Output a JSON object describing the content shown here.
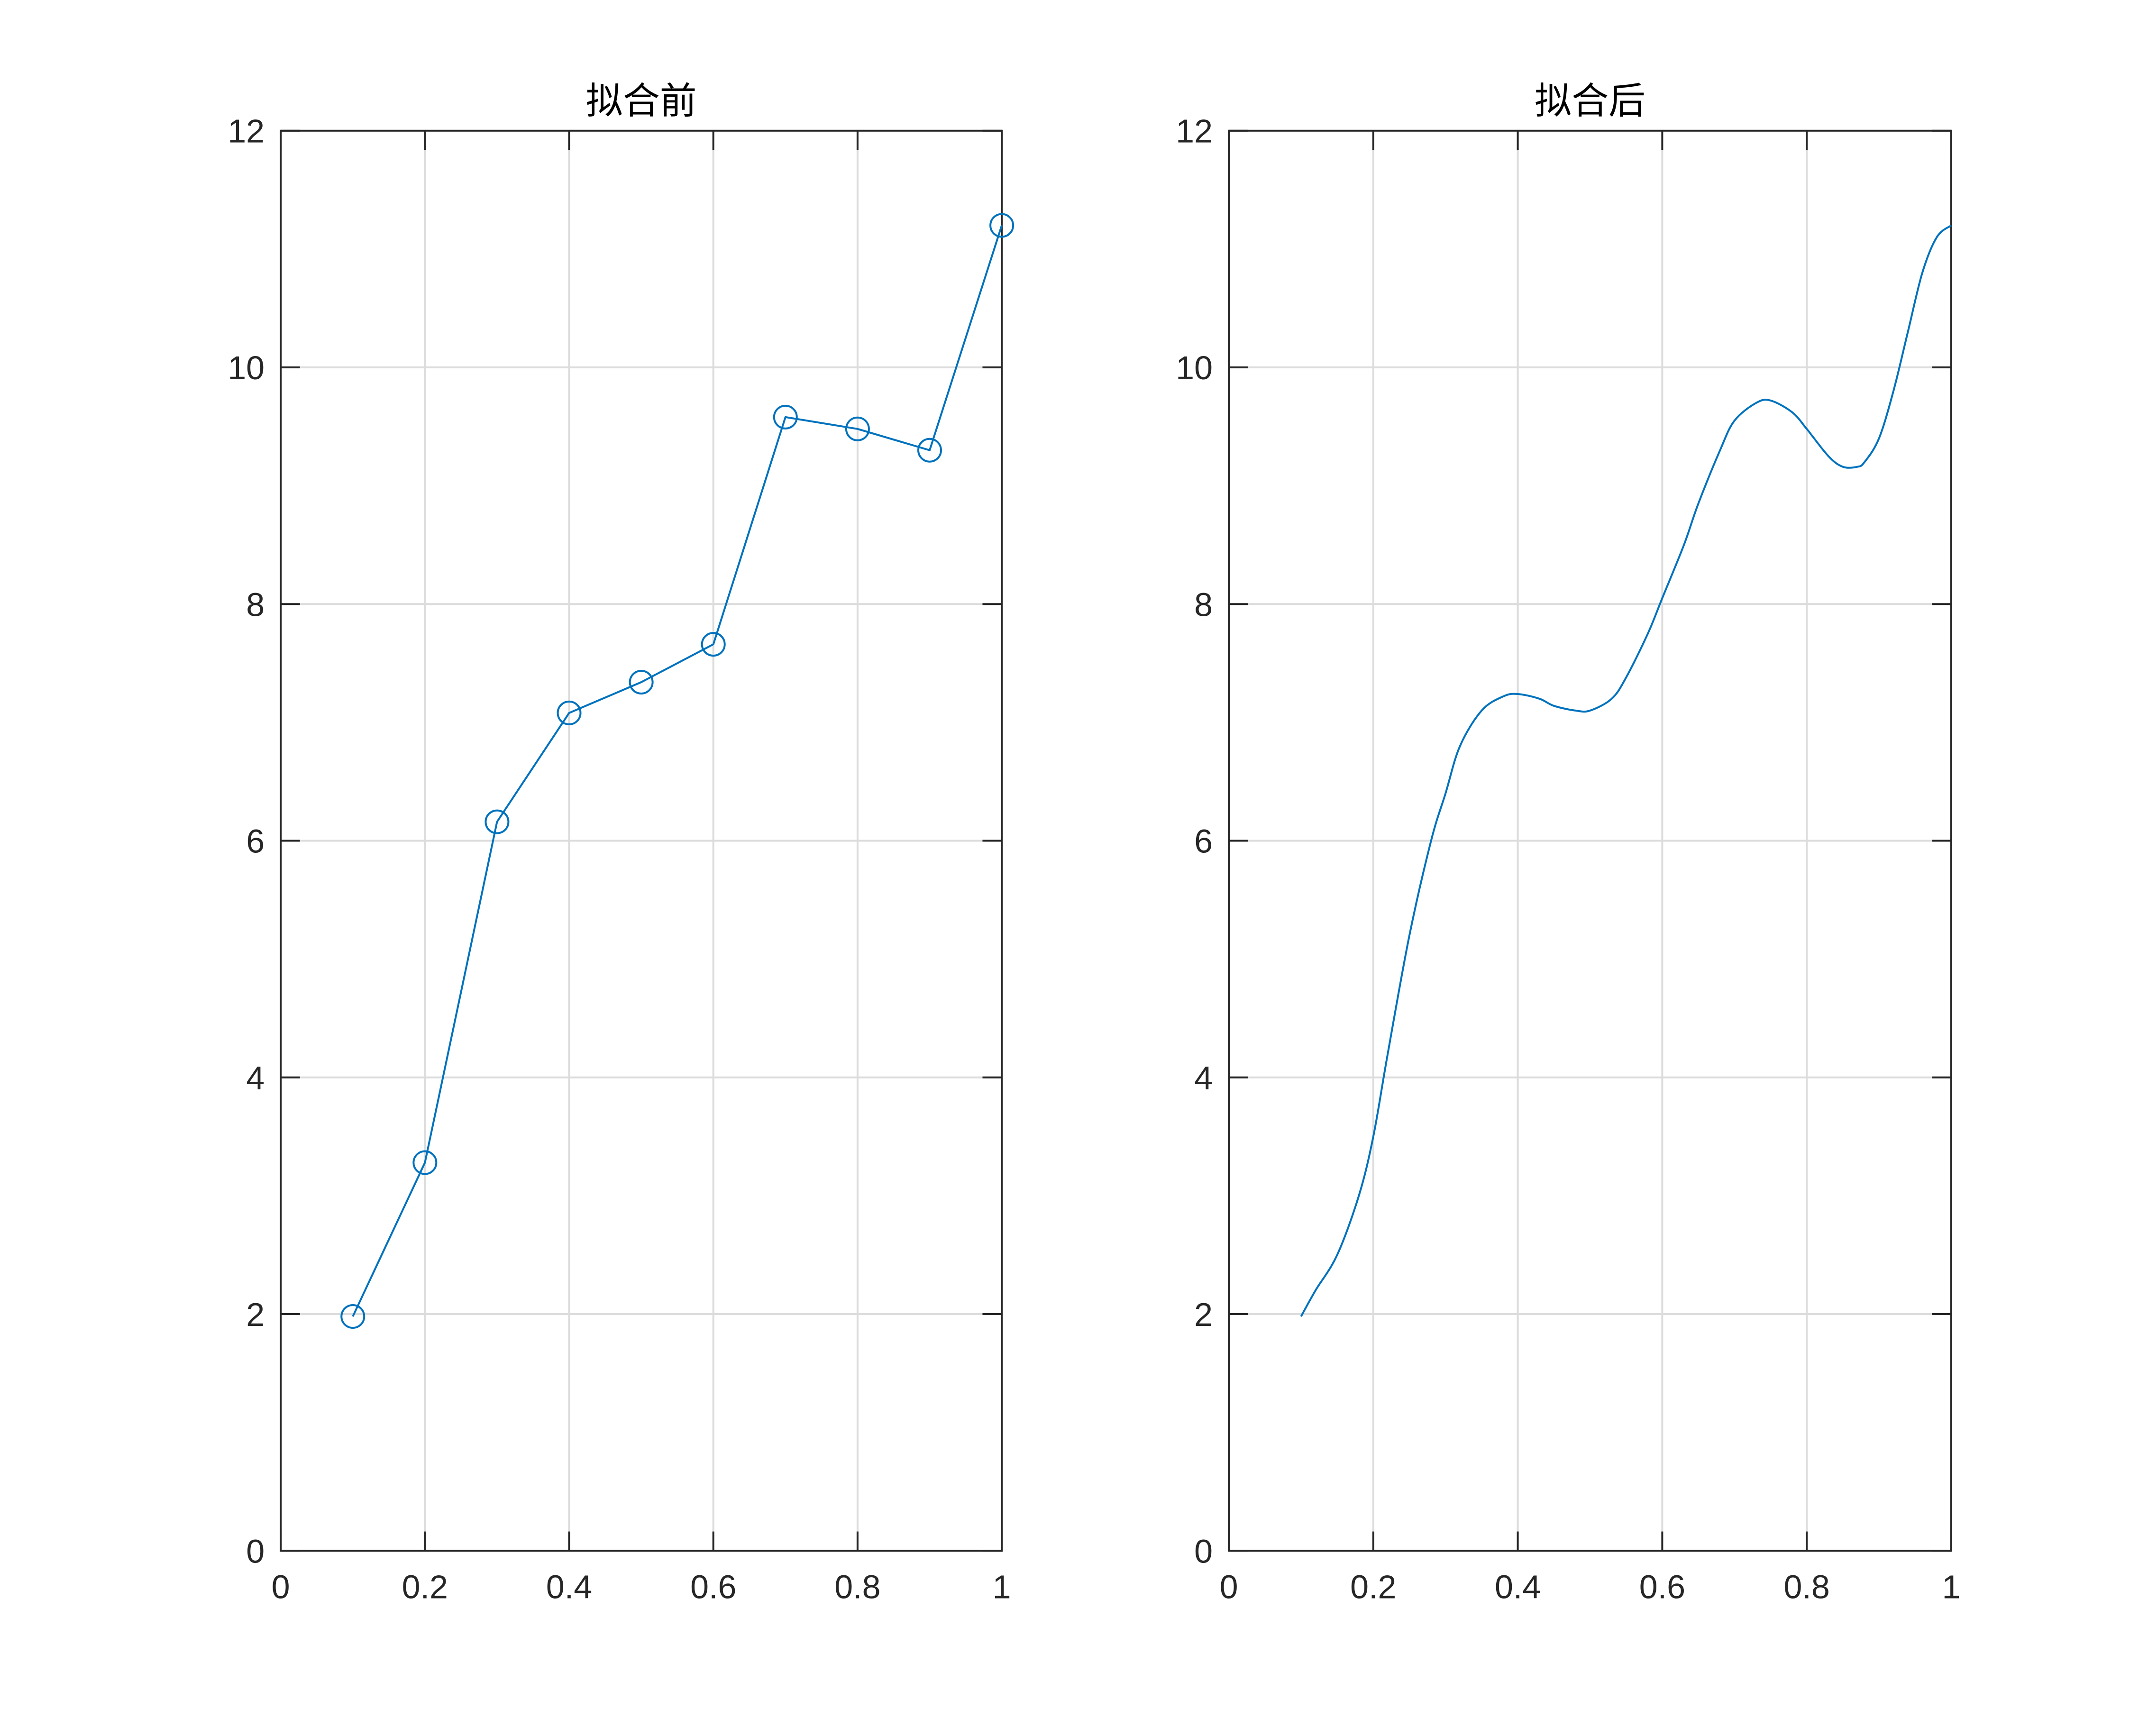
{
  "chart_data": [
    {
      "type": "line",
      "title": "拟合前",
      "xlabel": "",
      "ylabel": "",
      "xlim": [
        0,
        1
      ],
      "ylim": [
        0,
        12
      ],
      "xticks": [
        "0",
        "0.2",
        "0.4",
        "0.6",
        "0.8",
        "1"
      ],
      "yticks": [
        "0",
        "2",
        "4",
        "6",
        "8",
        "10",
        "12"
      ],
      "grid": true,
      "legend": "none",
      "series": [
        {
          "marker": "circle",
          "color": "#0072bd",
          "x": [
            0.1,
            0.2,
            0.3,
            0.4,
            0.5,
            0.6,
            0.7,
            0.8,
            0.9,
            1.0
          ],
          "y": [
            1.98,
            3.28,
            6.16,
            7.08,
            7.34,
            7.66,
            9.58,
            9.48,
            9.3,
            11.2
          ]
        }
      ]
    },
    {
      "type": "line",
      "title": "拟合后",
      "xlabel": "",
      "ylabel": "",
      "xlim": [
        0,
        1
      ],
      "ylim": [
        0,
        12
      ],
      "xticks": [
        "0",
        "0.2",
        "0.4",
        "0.6",
        "0.8",
        "1"
      ],
      "yticks": [
        "0",
        "2",
        "4",
        "6",
        "8",
        "10",
        "12"
      ],
      "grid": true,
      "legend": "none",
      "series": [
        {
          "marker": "none",
          "color": "#0072bd",
          "x": [
            0.1,
            0.12,
            0.15,
            0.18,
            0.2,
            0.22,
            0.25,
            0.28,
            0.3,
            0.32,
            0.35,
            0.38,
            0.4,
            0.43,
            0.45,
            0.48,
            0.5,
            0.53,
            0.55,
            0.58,
            0.6,
            0.63,
            0.65,
            0.68,
            0.7,
            0.73,
            0.75,
            0.78,
            0.8,
            0.83,
            0.85,
            0.87,
            0.88,
            0.9,
            0.92,
            0.94,
            0.96,
            0.98,
            1.0
          ],
          "y": [
            1.98,
            2.2,
            2.5,
            3.0,
            3.5,
            4.2,
            5.2,
            6.0,
            6.4,
            6.8,
            7.1,
            7.22,
            7.24,
            7.2,
            7.14,
            7.1,
            7.1,
            7.2,
            7.38,
            7.75,
            8.05,
            8.5,
            8.85,
            9.3,
            9.55,
            9.7,
            9.72,
            9.62,
            9.48,
            9.25,
            9.16,
            9.16,
            9.2,
            9.4,
            9.8,
            10.3,
            10.8,
            11.1,
            11.2
          ]
        }
      ]
    }
  ]
}
